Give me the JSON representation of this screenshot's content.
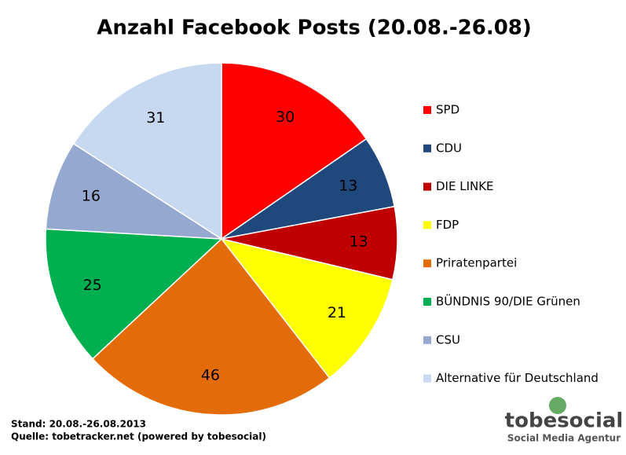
{
  "chart_data": {
    "type": "pie",
    "title": "Anzahl Facebook Posts (20.08.-26.08)",
    "categories": [
      "SPD",
      "CDU",
      "DIE LINKE",
      "FDP",
      "Priratenpartei",
      "BÜNDNIS 90/DIE Grünen",
      "CSU",
      "Alternative für Deutschland"
    ],
    "values": [
      30,
      13,
      13,
      21,
      46,
      25,
      16,
      31
    ],
    "colors": [
      "#ff0000",
      "#1f497d",
      "#c00000",
      "#ffff00",
      "#e36c09",
      "#00b050",
      "#95a9d0",
      "#c6d9f1"
    ],
    "legend": "right"
  },
  "footer": {
    "lines": [
      "Stand: 20.08.-26.08.2013",
      "Quelle: tobetracker.net (powered by tobesocial)"
    ],
    "logo": "tobesocial",
    "tagline": "Social Media Agentur"
  }
}
